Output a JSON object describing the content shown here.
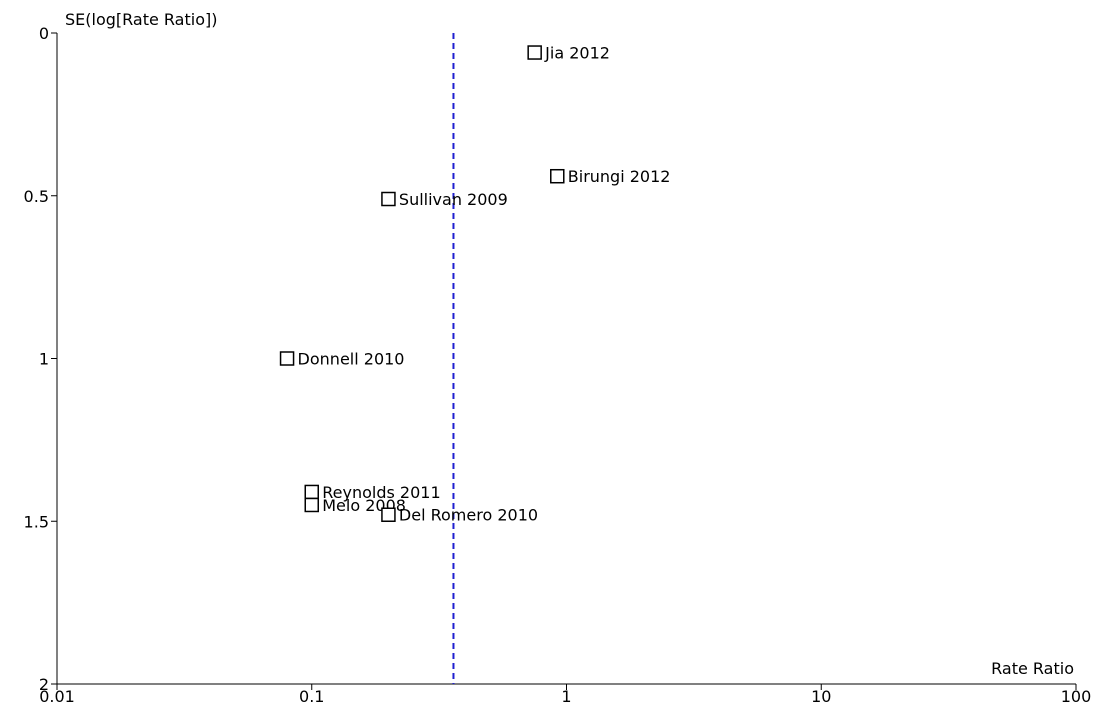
{
  "chart_data": {
    "type": "scatter",
    "subtype": "funnel plot",
    "xlabel": "Rate Ratio",
    "ylabel": "SE(log[Rate Ratio])",
    "x_scale": "log",
    "xlim": [
      0.01,
      100
    ],
    "ylim": [
      0,
      2
    ],
    "y_inverted": true,
    "x_ticks": [
      "0.01",
      "0.1",
      "1",
      "10",
      "100"
    ],
    "y_ticks": [
      "0",
      "0.5",
      "1",
      "1.5",
      "2"
    ],
    "grid": false,
    "pooled_estimate_line": {
      "x": 0.36,
      "color": "#2020d0",
      "style": "dashed"
    },
    "marker": "open-square",
    "points": [
      {
        "label": "Jia 2012",
        "x": 0.75,
        "y": 0.06
      },
      {
        "label": "Birungi 2012",
        "x": 0.92,
        "y": 0.44
      },
      {
        "label": "Sullivan 2009",
        "x": 0.2,
        "y": 0.51
      },
      {
        "label": "Donnell 2010",
        "x": 0.08,
        "y": 1.0
      },
      {
        "label": "Reynolds 2011",
        "x": 0.1,
        "y": 1.41
      },
      {
        "label": "Melo 2008",
        "x": 0.1,
        "y": 1.45
      },
      {
        "label": "Del Romero 2010",
        "x": 0.2,
        "y": 1.48
      }
    ]
  }
}
